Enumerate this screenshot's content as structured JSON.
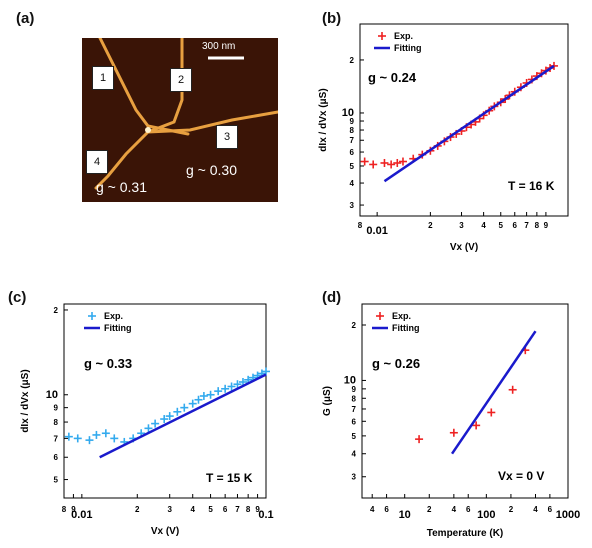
{
  "panel_labels": {
    "a": "(a)",
    "b": "(b)",
    "c": "(c)",
    "d": "(d)"
  },
  "afm": {
    "scale_bar_label": "300 nm",
    "box_labels": [
      "1",
      "2",
      "3",
      "4"
    ],
    "g_left": "g ~ 0.31",
    "g_right": "g ~ 0.30"
  },
  "chart_data": [
    {
      "id": "b",
      "type": "scatter",
      "xlabel": "Vx (V)",
      "ylabel": "dIx / dVx (μS)",
      "xscale": "log",
      "yscale": "log",
      "xlim": [
        0.008,
        0.12
      ],
      "ylim": [
        2.6,
        32
      ],
      "x_tick_labels": [
        {
          "v": 0.008,
          "t": "8"
        },
        {
          "v": 0.01,
          "t": "0.01"
        },
        {
          "v": 0.02,
          "t": "2"
        },
        {
          "v": 0.03,
          "t": "3"
        },
        {
          "v": 0.04,
          "t": "4"
        },
        {
          "v": 0.05,
          "t": "5"
        },
        {
          "v": 0.06,
          "t": "6"
        },
        {
          "v": 0.07,
          "t": "7"
        },
        {
          "v": 0.08,
          "t": "8"
        },
        {
          "v": 0.09,
          "t": "9"
        }
      ],
      "y_tick_labels": [
        {
          "v": 3,
          "t": "3"
        },
        {
          "v": 4,
          "t": "4"
        },
        {
          "v": 5,
          "t": "5"
        },
        {
          "v": 6,
          "t": "6"
        },
        {
          "v": 7,
          "t": "7"
        },
        {
          "v": 8,
          "t": "8"
        },
        {
          "v": 9,
          "t": "9"
        },
        {
          "v": 10,
          "t": "10"
        },
        {
          "v": 20,
          "t": "2"
        }
      ],
      "legend": [
        "Exp.",
        "Fitting"
      ],
      "legend_position": "top-left",
      "annotations": {
        "g": "g ~ 0.24",
        "temp": "T = 16 K"
      },
      "exp_color": "#ee2222",
      "fit_color": "#1a1acc",
      "series": [
        {
          "name": "Exp.",
          "marker": "+",
          "x": [
            0.0085,
            0.0095,
            0.011,
            0.012,
            0.013,
            0.014,
            0.016,
            0.018,
            0.02,
            0.022,
            0.024,
            0.026,
            0.028,
            0.03,
            0.032,
            0.034,
            0.036,
            0.038,
            0.04,
            0.043,
            0.046,
            0.05,
            0.053,
            0.056,
            0.06,
            0.065,
            0.07,
            0.075,
            0.08,
            0.085,
            0.09,
            0.095,
            0.1
          ],
          "y": [
            5.3,
            5.1,
            5.2,
            5.1,
            5.2,
            5.3,
            5.5,
            5.8,
            6.1,
            6.5,
            6.9,
            7.3,
            7.6,
            7.9,
            8.3,
            8.6,
            8.9,
            9.3,
            9.7,
            10.3,
            10.9,
            11.5,
            12.0,
            12.6,
            13.2,
            14.0,
            14.8,
            15.5,
            16.2,
            16.8,
            17.4,
            18.0,
            18.5
          ]
        },
        {
          "name": "Fitting",
          "type": "line",
          "x": [
            0.011,
            0.1
          ],
          "y": [
            4.1,
            18.5
          ]
        }
      ]
    },
    {
      "id": "c",
      "type": "scatter",
      "xlabel": "Vx (V)",
      "ylabel": "dIx / dVx (μS)",
      "xscale": "log",
      "yscale": "log",
      "xlim": [
        0.008,
        0.1
      ],
      "ylim": [
        4.3,
        21
      ],
      "x_tick_labels": [
        {
          "v": 0.008,
          "t": "8"
        },
        {
          "v": 0.009,
          "t": "9"
        },
        {
          "v": 0.01,
          "t": "0.01"
        },
        {
          "v": 0.02,
          "t": "2"
        },
        {
          "v": 0.03,
          "t": "3"
        },
        {
          "v": 0.04,
          "t": "4"
        },
        {
          "v": 0.05,
          "t": "5"
        },
        {
          "v": 0.06,
          "t": "6"
        },
        {
          "v": 0.07,
          "t": "7"
        },
        {
          "v": 0.08,
          "t": "8"
        },
        {
          "v": 0.09,
          "t": "9"
        },
        {
          "v": 0.1,
          "t": "0.1"
        }
      ],
      "y_tick_labels": [
        {
          "v": 5,
          "t": "5"
        },
        {
          "v": 6,
          "t": "6"
        },
        {
          "v": 7,
          "t": "7"
        },
        {
          "v": 8,
          "t": "8"
        },
        {
          "v": 9,
          "t": "9"
        },
        {
          "v": 10,
          "t": "10"
        },
        {
          "v": 20,
          "t": "2"
        }
      ],
      "legend": [
        "Exp.",
        "Fitting"
      ],
      "legend_position": "top-left",
      "annotations": {
        "g": "g ~ 0.33",
        "temp": "T = 15 K"
      },
      "exp_color": "#33aaee",
      "fit_color": "#1a1acc",
      "series": [
        {
          "name": "Exp.",
          "marker": "+",
          "x": [
            0.0085,
            0.0095,
            0.011,
            0.012,
            0.0135,
            0.015,
            0.017,
            0.019,
            0.021,
            0.023,
            0.025,
            0.028,
            0.03,
            0.033,
            0.036,
            0.04,
            0.043,
            0.046,
            0.05,
            0.055,
            0.06,
            0.065,
            0.07,
            0.075,
            0.08,
            0.085,
            0.09,
            0.095,
            0.1
          ],
          "y": [
            7.1,
            7.0,
            6.9,
            7.2,
            7.3,
            7.0,
            6.8,
            7.0,
            7.3,
            7.6,
            7.9,
            8.2,
            8.4,
            8.7,
            9.0,
            9.3,
            9.6,
            9.9,
            10.0,
            10.3,
            10.5,
            10.7,
            10.9,
            11.1,
            11.3,
            11.5,
            11.7,
            11.9,
            12.1
          ]
        },
        {
          "name": "Fitting",
          "type": "line",
          "x": [
            0.0125,
            0.1
          ],
          "y": [
            6.0,
            11.8
          ]
        }
      ]
    },
    {
      "id": "d",
      "type": "scatter",
      "xlabel": "Temperature (K)",
      "ylabel": "G (μS)",
      "xscale": "log",
      "yscale": "log",
      "xlim": [
        3,
        1000
      ],
      "ylim": [
        2.3,
        26
      ],
      "x_tick_labels": [
        {
          "v": 4,
          "t": "4"
        },
        {
          "v": 6,
          "t": "6"
        },
        {
          "v": 10,
          "t": "10"
        },
        {
          "v": 20,
          "t": "2"
        },
        {
          "v": 40,
          "t": "4"
        },
        {
          "v": 60,
          "t": "6"
        },
        {
          "v": 100,
          "t": "100"
        },
        {
          "v": 200,
          "t": "2"
        },
        {
          "v": 400,
          "t": "4"
        },
        {
          "v": 600,
          "t": "6"
        },
        {
          "v": 1000,
          "t": "1000"
        }
      ],
      "y_tick_labels": [
        {
          "v": 3,
          "t": "3"
        },
        {
          "v": 4,
          "t": "4"
        },
        {
          "v": 5,
          "t": "5"
        },
        {
          "v": 6,
          "t": "6"
        },
        {
          "v": 7,
          "t": "7"
        },
        {
          "v": 8,
          "t": "8"
        },
        {
          "v": 9,
          "t": "9"
        },
        {
          "v": 10,
          "t": "10"
        },
        {
          "v": 20,
          "t": "2"
        }
      ],
      "legend": [
        "Exp.",
        "Fitting"
      ],
      "legend_position": "top-left",
      "annotations": {
        "g": "g ~ 0.26",
        "temp": "Vx = 0 V"
      },
      "exp_color": "#ee2222",
      "fit_color": "#1a1acc",
      "series": [
        {
          "name": "Exp.",
          "marker": "+",
          "x": [
            15,
            40,
            75,
            115,
            210,
            300
          ],
          "y": [
            4.8,
            5.2,
            5.7,
            6.7,
            8.9,
            14.6
          ]
        },
        {
          "name": "Fitting",
          "type": "line",
          "x": [
            38,
            400
          ],
          "y": [
            4.0,
            18.5
          ]
        }
      ]
    }
  ]
}
